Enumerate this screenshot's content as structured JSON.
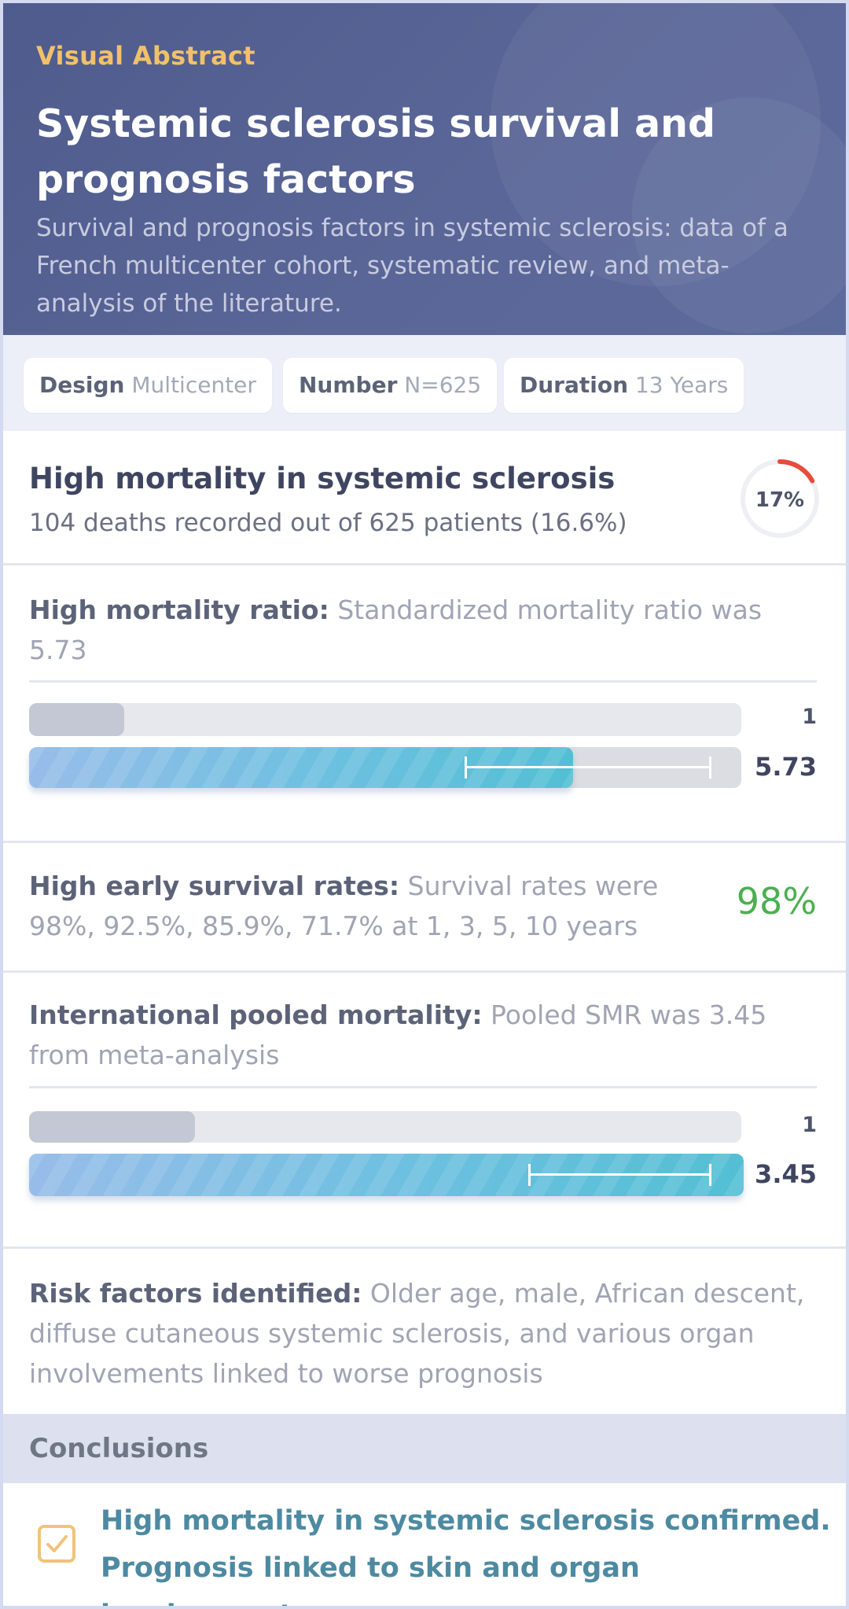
{
  "header": {
    "eyebrow": "Visual Abstract",
    "title": "Systemic sclerosis survival and prognosis factors",
    "subtitle": "Survival and prognosis factors in systemic sclerosis: data of a French multicenter cohort, systematic review, and meta-analysis of the literature."
  },
  "chips": [
    {
      "label": "Design",
      "value": "Multicenter"
    },
    {
      "label": "Number",
      "value": "N=625"
    },
    {
      "label": "Duration",
      "value": "13 Years"
    }
  ],
  "mortality": {
    "title": "High mortality in systemic sclerosis",
    "text": "104 deaths recorded out of 625 patients (16.6%)",
    "ring_label": "17%",
    "ring_fraction": 0.17
  },
  "smr": {
    "heading": "High mortality ratio:",
    "text": "Standardized mortality ratio was 5.73",
    "ref_value": 1,
    "ref_label": "1",
    "value": 5.73,
    "value_label": "5.73"
  },
  "survival": {
    "heading": "High early survival rates:",
    "text": "Survival rates were 98%, 92.5%, 85.9%, 71.7% at 1, 3, 5, 10 years",
    "highlight": "98%"
  },
  "pooled": {
    "heading": "International pooled mortality:",
    "text": "Pooled SMR was 3.45 from meta-analysis",
    "ref_value": 1,
    "ref_label": "1",
    "value": 3.45,
    "value_label": "3.45"
  },
  "risk": {
    "heading": "Risk factors identified:",
    "text": "Older age, male, African descent, diffuse cutaneous systemic sclerosis, and various organ involvements linked to worse prognosis"
  },
  "conclusions": {
    "heading": "Conclusions",
    "text": "High mortality in systemic sclerosis confirmed. Prognosis linked to skin and organ involvement."
  },
  "colors": {
    "header_bg": "#545f92",
    "accent_gold": "#f1c16a",
    "ring_red": "#e74c3c",
    "survival_green": "#4caf50",
    "conclusion_teal": "#4d8aa2"
  },
  "icons": {
    "ring": "progress-ring",
    "check": "checkbox-check-icon"
  }
}
